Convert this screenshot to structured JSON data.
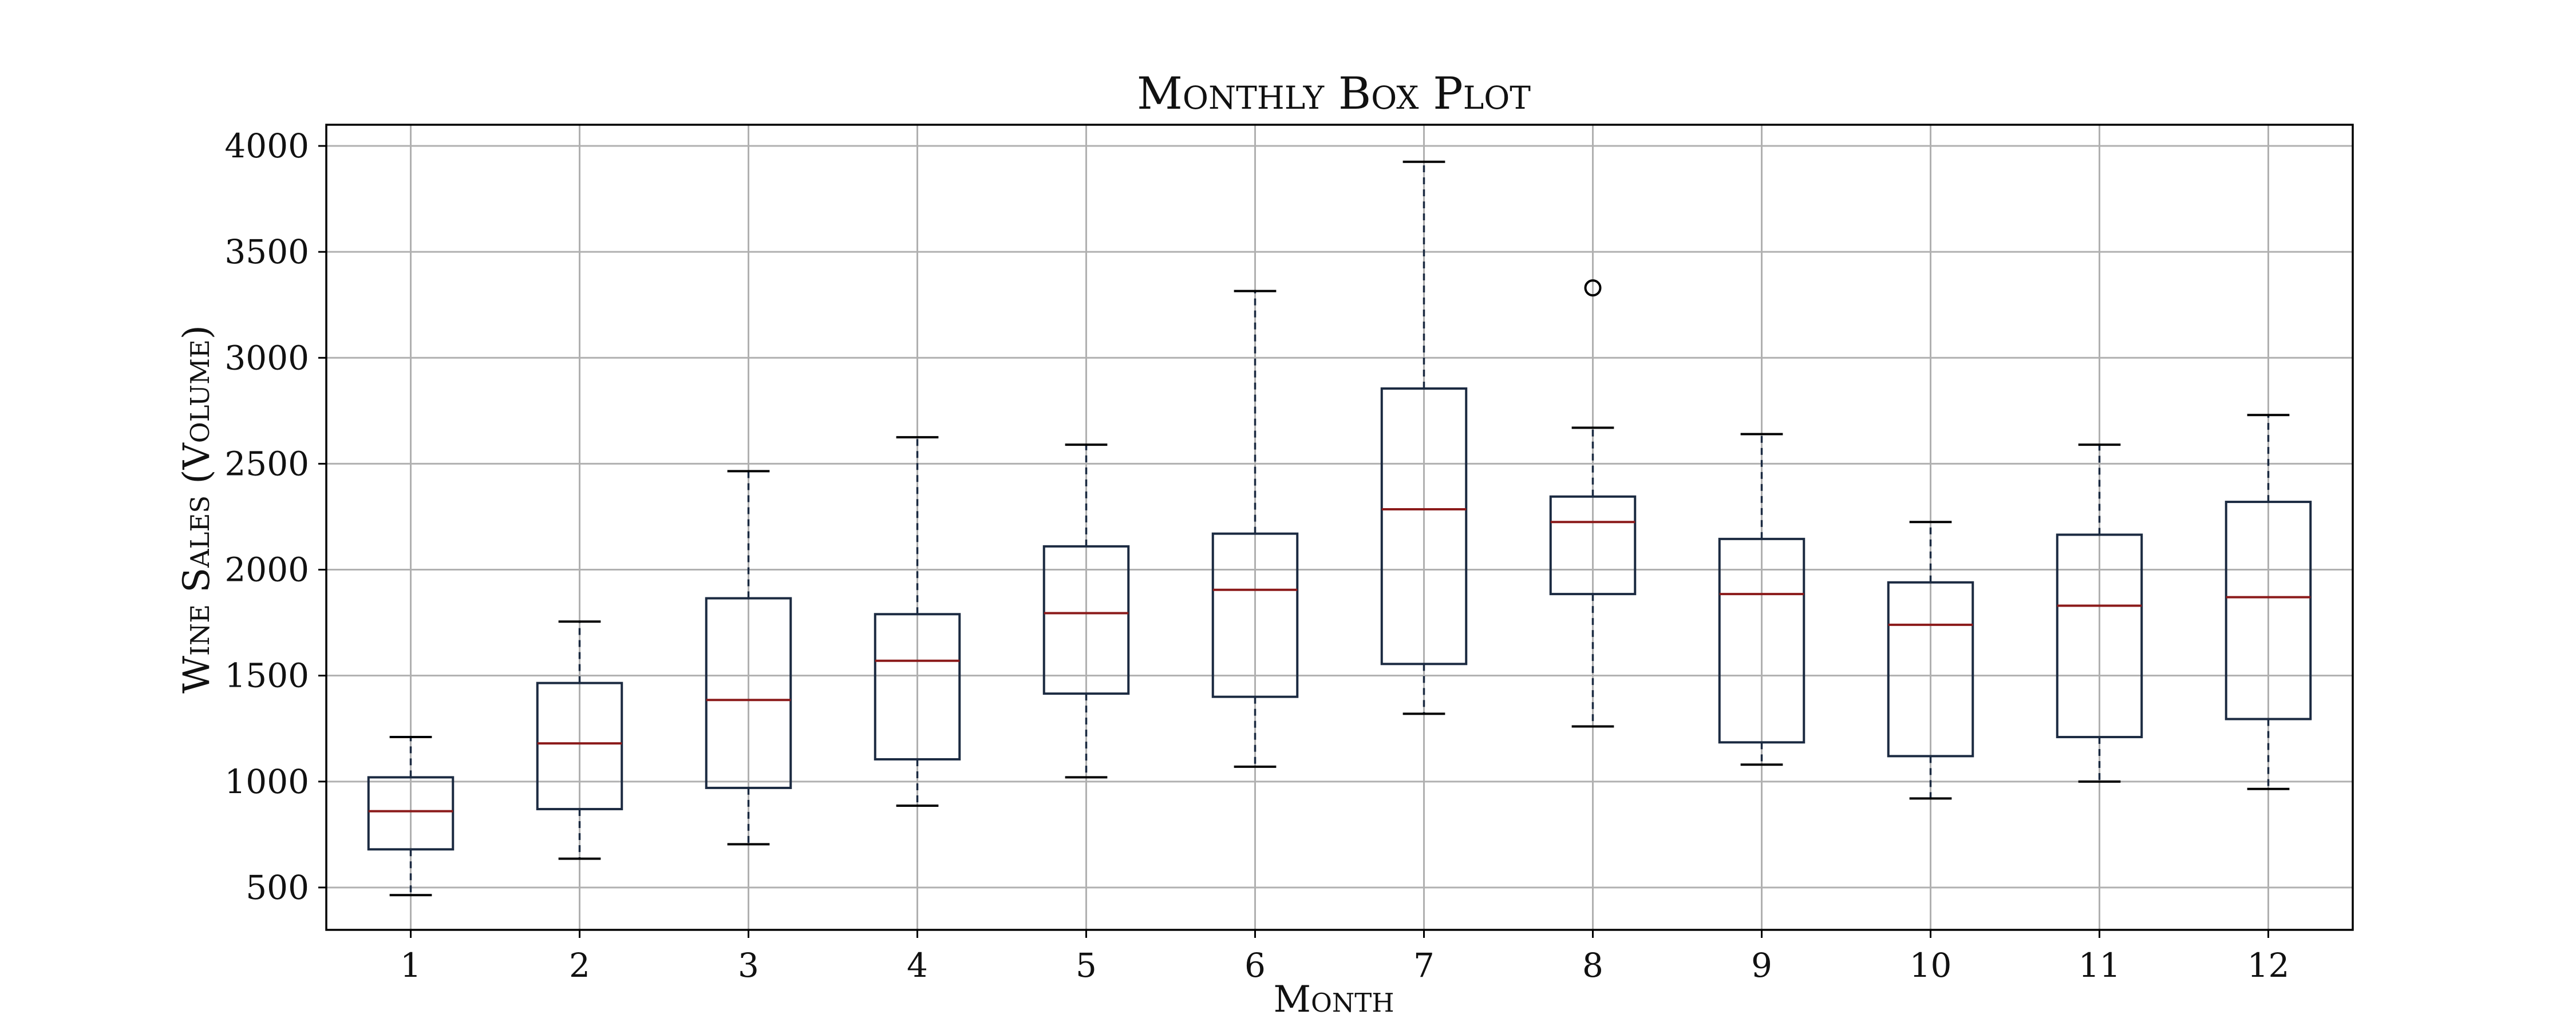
{
  "colors": {
    "box": "#1b2a41",
    "median": "#8b1a1a",
    "whisker": "#1b2a41",
    "cap": "#000000",
    "grid": "#b0b0b0"
  },
  "chart_data": {
    "type": "box",
    "title": "Monthly Box Plot",
    "xlabel": "Month",
    "ylabel": "Wine Sales (Volume)",
    "ylim": [
      300,
      4100
    ],
    "yticks": [
      500,
      1000,
      1500,
      2000,
      2500,
      3000,
      3500,
      4000
    ],
    "grid": true,
    "categories": [
      "1",
      "2",
      "3",
      "4",
      "5",
      "6",
      "7",
      "8",
      "9",
      "10",
      "11",
      "12"
    ],
    "boxes": [
      {
        "min": 464,
        "q1": 680,
        "median": 860,
        "q3": 1020,
        "max": 1210,
        "outliers": []
      },
      {
        "min": 636,
        "q1": 870,
        "median": 1180,
        "q3": 1465,
        "max": 1755,
        "outliers": []
      },
      {
        "min": 704,
        "q1": 970,
        "median": 1385,
        "q3": 1865,
        "max": 2465,
        "outliers": []
      },
      {
        "min": 886,
        "q1": 1105,
        "median": 1570,
        "q3": 1790,
        "max": 2625,
        "outliers": []
      },
      {
        "min": 1020,
        "q1": 1415,
        "median": 1795,
        "q3": 2110,
        "max": 2590,
        "outliers": []
      },
      {
        "min": 1070,
        "q1": 1400,
        "median": 1905,
        "q3": 2170,
        "max": 3315,
        "outliers": []
      },
      {
        "min": 1320,
        "q1": 1555,
        "median": 2285,
        "q3": 2855,
        "max": 3925,
        "outliers": []
      },
      {
        "min": 1260,
        "q1": 1885,
        "median": 2225,
        "q3": 2345,
        "max": 2670,
        "outliers": [
          3330
        ]
      },
      {
        "min": 1080,
        "q1": 1185,
        "median": 1885,
        "q3": 2145,
        "max": 2640,
        "outliers": []
      },
      {
        "min": 920,
        "q1": 1120,
        "median": 1740,
        "q3": 1940,
        "max": 2225,
        "outliers": []
      },
      {
        "min": 1000,
        "q1": 1210,
        "median": 1830,
        "q3": 2165,
        "max": 2590,
        "outliers": []
      },
      {
        "min": 965,
        "q1": 1295,
        "median": 1870,
        "q3": 2320,
        "max": 2730,
        "outliers": []
      }
    ]
  }
}
